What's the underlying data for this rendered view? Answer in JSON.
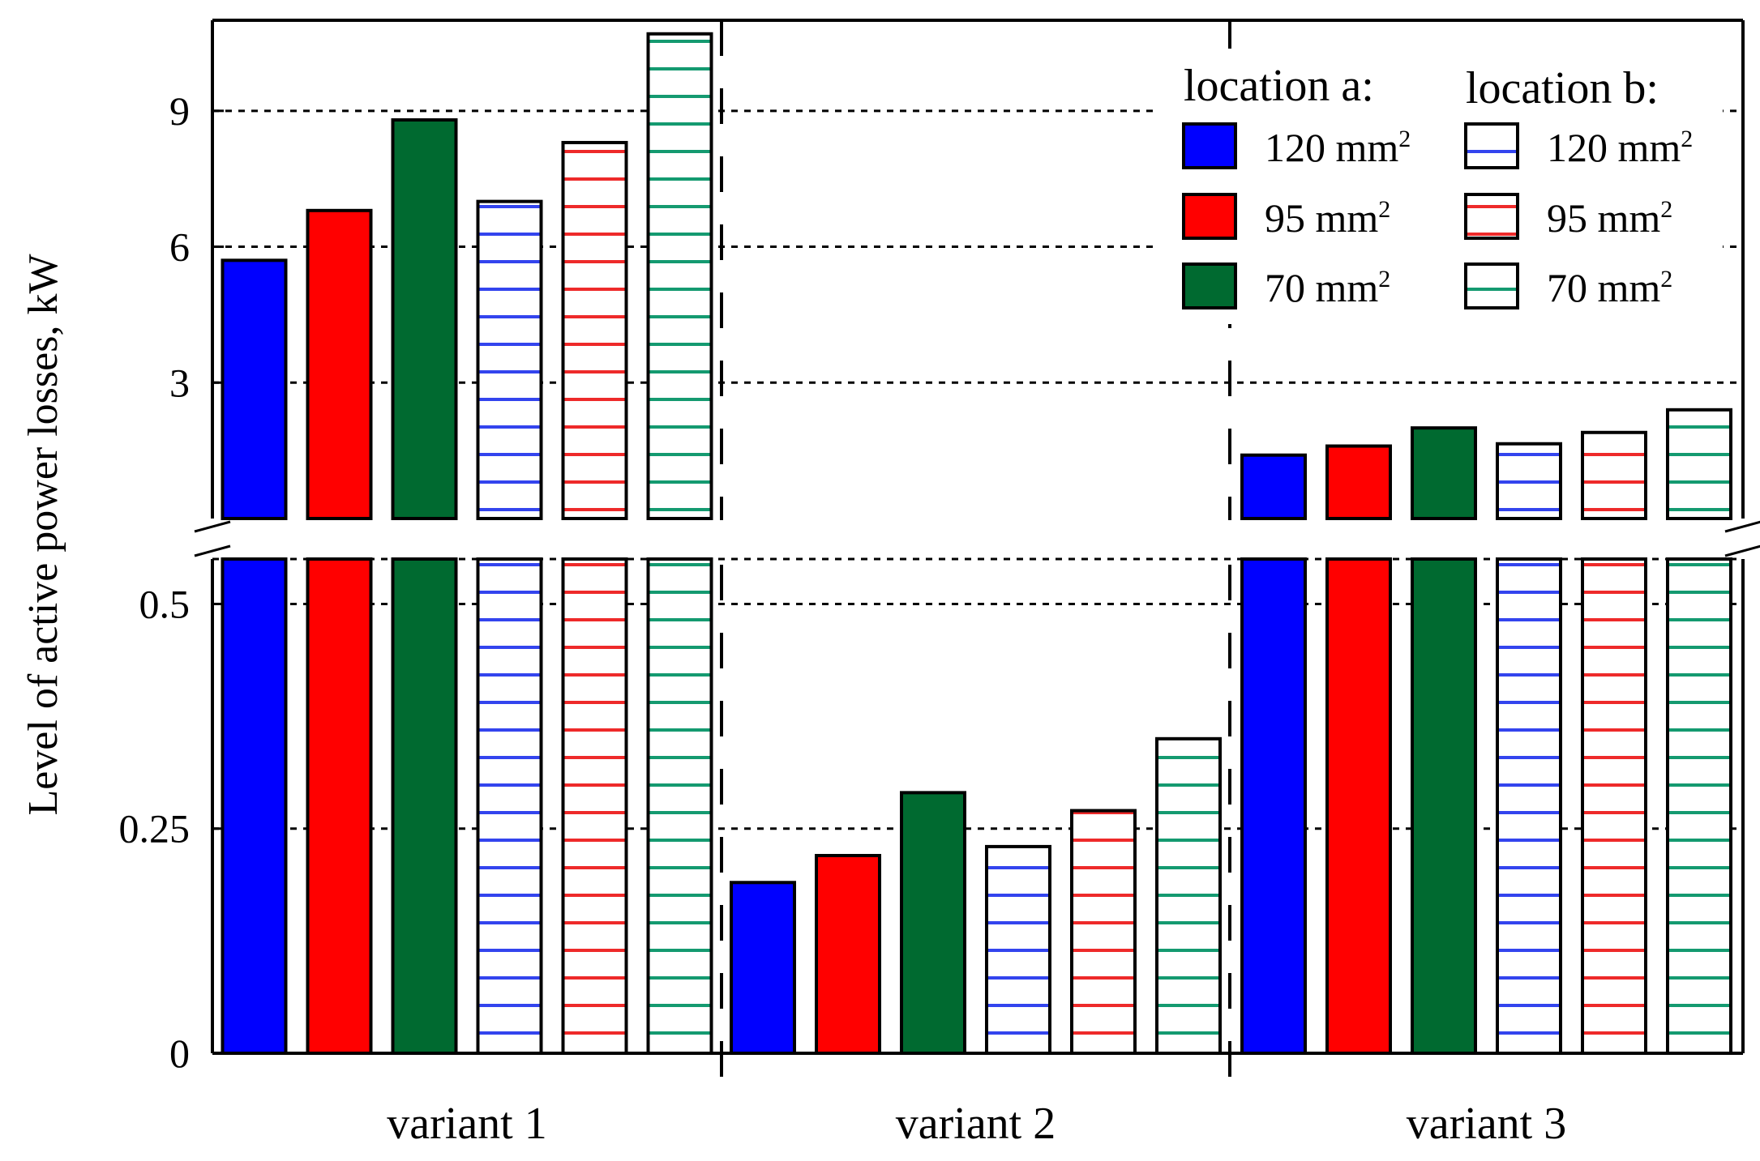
{
  "chart_data": {
    "type": "bar",
    "title": "",
    "xlabel": "",
    "ylabel": "Level of active power losses, kW",
    "categories": [
      "variant 1",
      "variant 2",
      "variant 3"
    ],
    "axis_break": "between 0.5 and upper segment",
    "lower_segment": {
      "ylim": [
        0,
        0.55
      ],
      "ticks": [
        "0",
        "0.25",
        "0.5"
      ]
    },
    "upper_segment": {
      "ylim": [
        0,
        11
      ],
      "ticks": [
        "3",
        "6",
        "9"
      ]
    },
    "grid": "dotted horizontal",
    "series": [
      {
        "name": "location a: 120 mm²",
        "location": "a",
        "cross_section": "120 mm",
        "color": "#0000ff",
        "pattern": "solid",
        "values": [
          5.7,
          0.19,
          1.4
        ]
      },
      {
        "name": "location a: 95 mm²",
        "location": "a",
        "cross_section": "95 mm",
        "color": "#ff0000",
        "pattern": "solid",
        "values": [
          6.8,
          0.22,
          1.6
        ]
      },
      {
        "name": "location a: 70 mm²",
        "location": "a",
        "cross_section": "70 mm",
        "color": "#006a30",
        "pattern": "solid",
        "values": [
          8.8,
          0.29,
          2.0
        ]
      },
      {
        "name": "location b: 120 mm²",
        "location": "b",
        "cross_section": "120 mm",
        "color": "#3344ee",
        "pattern": "striped",
        "values": [
          7.0,
          0.23,
          1.65
        ]
      },
      {
        "name": "location b: 95 mm²",
        "location": "b",
        "cross_section": "95 mm",
        "color": "#ee2a2a",
        "pattern": "striped",
        "values": [
          8.3,
          0.27,
          1.9
        ]
      },
      {
        "name": "location b: 70 mm²",
        "location": "b",
        "cross_section": "70 mm",
        "color": "#149a70",
        "pattern": "striped",
        "values": [
          10.7,
          0.35,
          2.4
        ]
      }
    ],
    "legend": {
      "placement": "top-right",
      "location_a_title": "location a:",
      "location_b_title": "location b:",
      "superscript": "2"
    }
  }
}
